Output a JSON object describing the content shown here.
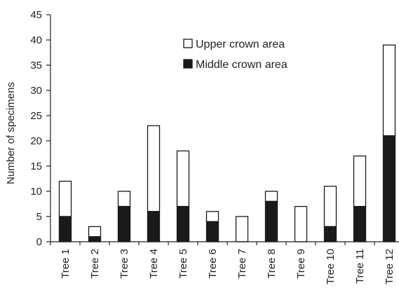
{
  "chart_data": {
    "type": "bar",
    "stacked": true,
    "categories": [
      "Tree 1",
      "Tree 2",
      "Tree 3",
      "Tree 4",
      "Tree 5",
      "Tree 6",
      "Tree 7",
      "Tree 8",
      "Tree 9",
      "Tree 10",
      "Tree 11",
      "Tree 12"
    ],
    "series": [
      {
        "name": "Middle crown area",
        "color": "#1a1a1a",
        "values": [
          5,
          1,
          7,
          6,
          7,
          4,
          0,
          8,
          0,
          3,
          7,
          21
        ]
      },
      {
        "name": "Upper crown area",
        "color": "#ffffff",
        "values": [
          7,
          2,
          3,
          17,
          11,
          2,
          5,
          2,
          7,
          8,
          10,
          18
        ]
      }
    ],
    "legend_order": [
      "Upper crown area",
      "Middle crown area"
    ],
    "ylabel": "Number of specimens",
    "xlabel": "",
    "ylim": [
      0,
      45
    ],
    "yticks": [
      0,
      5,
      10,
      15,
      20,
      25,
      30,
      35,
      40,
      45
    ],
    "grid": false,
    "legend_position": "top-center"
  }
}
